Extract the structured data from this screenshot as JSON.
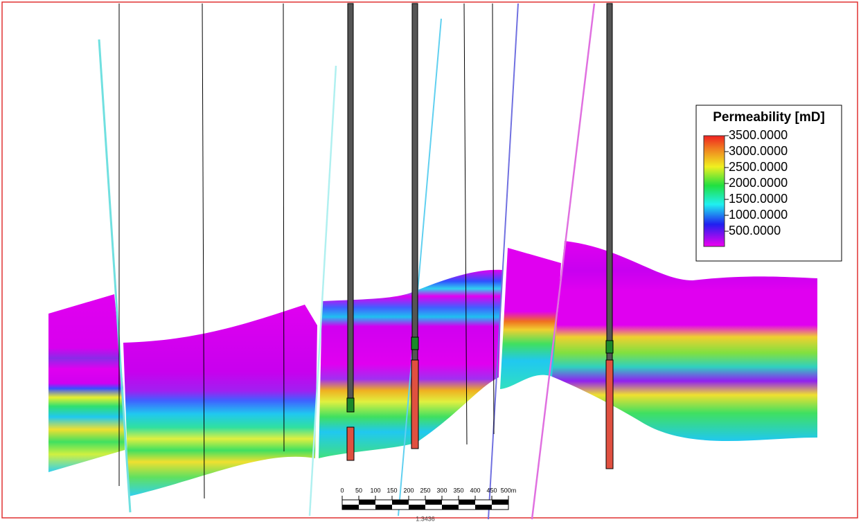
{
  "legend": {
    "title": "Permeability [mD]",
    "labels": [
      "3500.0000",
      "3000.0000",
      "2500.0000",
      "2000.0000",
      "1500.0000",
      "1000.0000",
      "500.0000"
    ]
  },
  "scale_bar": {
    "labels": [
      "0",
      "50",
      "100",
      "150",
      "200",
      "250",
      "300",
      "350",
      "400",
      "450",
      "500m"
    ],
    "ratio": "1:3436"
  }
}
